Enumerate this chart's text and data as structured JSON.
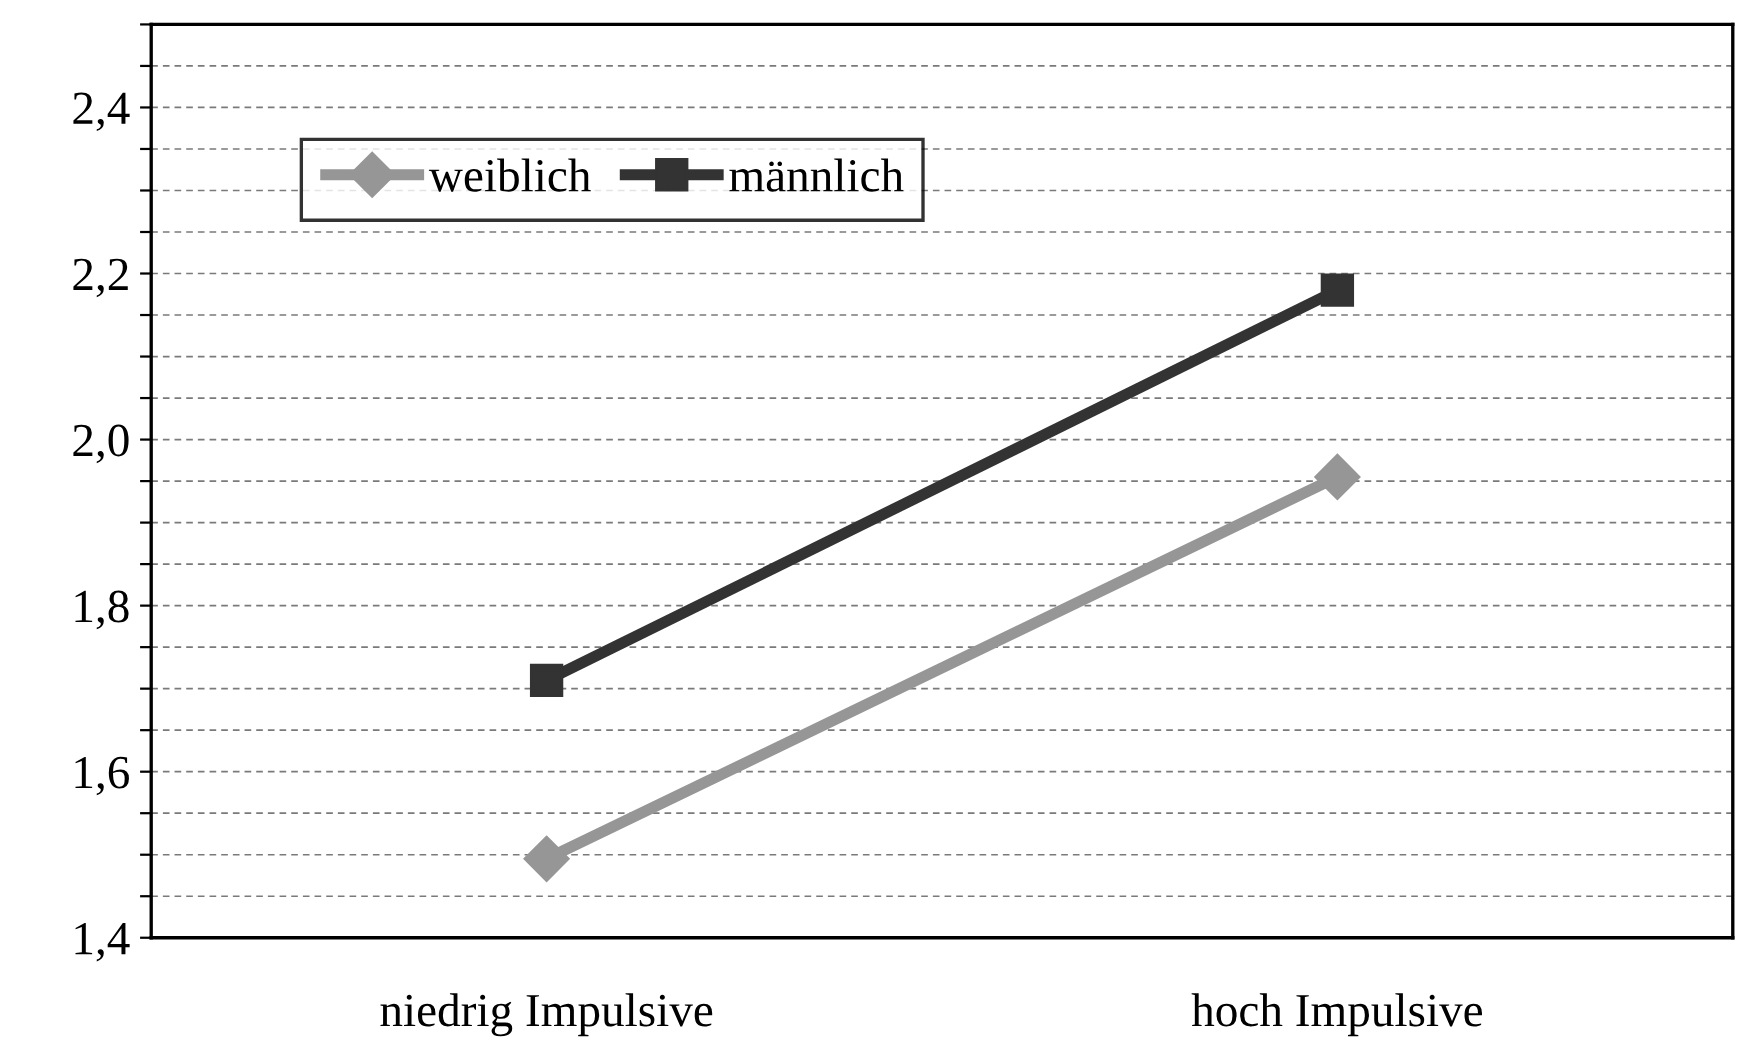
{
  "chart_data": {
    "type": "line",
    "categories": [
      "niedrig Impulsive",
      "hoch Impulsive"
    ],
    "series": [
      {
        "name": "weiblich",
        "color": "#969696",
        "marker": "diamond",
        "values": [
          1.495,
          1.955
        ]
      },
      {
        "name": "männlich",
        "color": "#333333",
        "marker": "square",
        "values": [
          1.71,
          2.18
        ]
      }
    ],
    "ylim": [
      1.4,
      2.5
    ],
    "yticks": [
      {
        "value": 1.4,
        "label": "1,4"
      },
      {
        "value": 1.45,
        "label": null
      },
      {
        "value": 1.5,
        "label": null
      },
      {
        "value": 1.55,
        "label": null
      },
      {
        "value": 1.6,
        "label": "1,6"
      },
      {
        "value": 1.65,
        "label": null
      },
      {
        "value": 1.7,
        "label": null
      },
      {
        "value": 1.75,
        "label": null
      },
      {
        "value": 1.8,
        "label": "1,8"
      },
      {
        "value": 1.85,
        "label": null
      },
      {
        "value": 1.9,
        "label": null
      },
      {
        "value": 1.95,
        "label": null
      },
      {
        "value": 2.0,
        "label": "2,0"
      },
      {
        "value": 2.05,
        "label": null
      },
      {
        "value": 2.1,
        "label": null
      },
      {
        "value": 2.15,
        "label": null
      },
      {
        "value": 2.2,
        "label": "2,2"
      },
      {
        "value": 2.25,
        "label": null
      },
      {
        "value": 2.3,
        "label": null
      },
      {
        "value": 2.35,
        "label": null
      },
      {
        "value": 2.4,
        "label": "2,4"
      },
      {
        "value": 2.45,
        "label": null
      },
      {
        "value": 2.5,
        "label": null
      }
    ],
    "grid": "y",
    "legend": "top left",
    "line_style": "solid"
  }
}
